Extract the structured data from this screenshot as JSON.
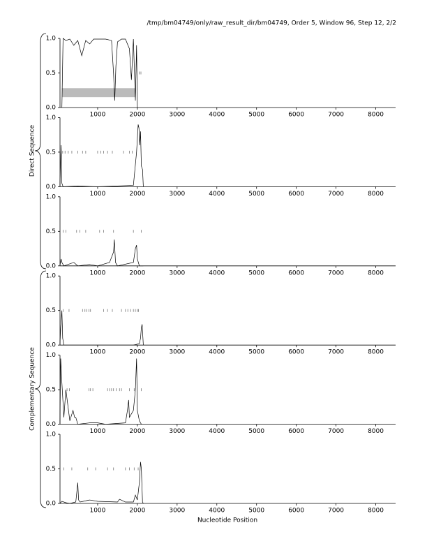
{
  "title": "/tmp/bm04749/only/raw_result_dir/bm04749, Order 5, Window 96, Step 12, 2/2",
  "xlabel": "Nucleotide Position",
  "groups": [
    "Direct Sequence",
    "Complementary Sequence"
  ],
  "chart_data": [
    {
      "type": "line",
      "color": "#000000",
      "x": [
        100,
        130,
        200,
        300,
        400,
        500,
        600,
        700,
        800,
        900,
        1000,
        1200,
        1350,
        1400,
        1430,
        1460,
        1500,
        1600,
        1700,
        1800,
        1850,
        1900,
        1950,
        1980,
        2000
      ],
      "values": [
        0,
        1,
        0.97,
        0.99,
        0.9,
        0.97,
        0.75,
        0.97,
        0.92,
        0.99,
        0.99,
        0.99,
        0.97,
        0.5,
        0.1,
        0.6,
        0.95,
        0.99,
        0.99,
        0.85,
        0.4,
        0.99,
        0.1,
        0.9,
        0
      ],
      "marks_x": [
        2050,
        2090
      ],
      "marks_y": [
        0.5,
        0.5
      ],
      "region": {
        "x": [
          100,
          1950
        ],
        "y": [
          0.15,
          0.28
        ]
      },
      "xlim": [
        0,
        8500
      ],
      "ylim": [
        0,
        1
      ],
      "xticks": [
        1000,
        2000,
        3000,
        4000,
        5000,
        6000,
        7000,
        8000
      ],
      "yticks": [
        {
          "value": 0,
          "label": "0.0"
        },
        {
          "value": 0.5,
          "label": "0.5"
        },
        {
          "value": 1,
          "label": "1.0"
        }
      ]
    },
    {
      "type": "line",
      "color": "#000000",
      "x": [
        50,
        80,
        100,
        130,
        500,
        1000,
        1500,
        1900,
        1980,
        2020,
        2040,
        2060,
        2080,
        2100,
        2130,
        2150
      ],
      "values": [
        0,
        0.6,
        0.05,
        0,
        0.01,
        0,
        0.01,
        0.02,
        0.5,
        0.9,
        0.85,
        0.6,
        0.8,
        0.3,
        0.25,
        0
      ],
      "marks_x": [
        120,
        180,
        260,
        350,
        500,
        620,
        700,
        1000,
        1080,
        1150,
        1250,
        1370,
        1650,
        1800,
        1870
      ],
      "marks_y": [
        0.5,
        0.5,
        0.5,
        0.5,
        0.5,
        0.5,
        0.5,
        0.5,
        0.5,
        0.5,
        0.5,
        0.5,
        0.5,
        0.5,
        0.5
      ],
      "xlim": [
        0,
        8500
      ],
      "ylim": [
        0,
        1
      ],
      "xticks": [
        1000,
        2000,
        3000,
        4000,
        5000,
        6000,
        7000,
        8000
      ],
      "yticks": [
        {
          "value": 0,
          "label": "0.0"
        },
        {
          "value": 0.5,
          "label": "0.5"
        },
        {
          "value": 1,
          "label": "1.0"
        }
      ]
    },
    {
      "type": "line",
      "color": "#000000",
      "x": [
        50,
        80,
        100,
        150,
        400,
        500,
        800,
        1000,
        1300,
        1400,
        1420,
        1450,
        1500,
        1900,
        1950,
        1980,
        2000,
        2050,
        2150
      ],
      "values": [
        0,
        0.1,
        0.05,
        0,
        0.05,
        0,
        0.02,
        0,
        0.05,
        0.2,
        0.38,
        0.05,
        0,
        0.05,
        0.25,
        0.3,
        0.1,
        0,
        0
      ],
      "marks_x": [
        130,
        200,
        470,
        550,
        700,
        1050,
        1150,
        1400,
        1900,
        2100
      ],
      "marks_y": [
        0.5,
        0.5,
        0.5,
        0.5,
        0.5,
        0.5,
        0.5,
        0.5,
        0.5,
        0.5
      ],
      "xlim": [
        0,
        8500
      ],
      "ylim": [
        0,
        1
      ],
      "xticks": [
        1000,
        2000,
        3000,
        4000,
        5000,
        6000,
        7000,
        8000
      ],
      "yticks": [
        {
          "value": 0,
          "label": "0.0"
        },
        {
          "value": 0.5,
          "label": "0.5"
        },
        {
          "value": 1,
          "label": "1.0"
        }
      ]
    },
    {
      "type": "line",
      "color": "#000000",
      "x": [
        50,
        70,
        100,
        120,
        150,
        1000,
        1900,
        2050,
        2080,
        2100,
        2120,
        2150
      ],
      "values": [
        0,
        0.25,
        0.5,
        0.1,
        0,
        0,
        0,
        0.02,
        0.1,
        0.25,
        0.3,
        0
      ],
      "marks_x": [
        130,
        280,
        620,
        680,
        720,
        780,
        820,
        1150,
        1250,
        1370,
        1600,
        1700,
        1760,
        1830,
        1900,
        1950,
        2000,
        2030
      ],
      "marks_y": [
        0.5,
        0.5,
        0.5,
        0.5,
        0.5,
        0.5,
        0.5,
        0.5,
        0.5,
        0.5,
        0.5,
        0.5,
        0.5,
        0.5,
        0.5,
        0.5,
        0.5,
        0.5
      ],
      "xlim": [
        0,
        8500
      ],
      "ylim": [
        0,
        1
      ],
      "xticks": [
        1000,
        2000,
        3000,
        4000,
        5000,
        6000,
        7000,
        8000
      ],
      "yticks": [
        {
          "value": 0,
          "label": "0.0"
        },
        {
          "value": 0.5,
          "label": "0.5"
        },
        {
          "value": 1,
          "label": "1.0"
        }
      ]
    },
    {
      "type": "line",
      "color": "#000000",
      "x": [
        50,
        70,
        100,
        150,
        200,
        300,
        380,
        420,
        450,
        500,
        800,
        1000,
        1200,
        1700,
        1750,
        1780,
        1800,
        1900,
        1950,
        1980,
        2000,
        2050,
        2100
      ],
      "values": [
        0,
        0.95,
        0.6,
        0.1,
        0.5,
        0.05,
        0.2,
        0.1,
        0.1,
        0,
        0.02,
        0.02,
        0,
        0.02,
        0.2,
        0.35,
        0.1,
        0.2,
        0.5,
        0.95,
        0.2,
        0.05,
        0
      ],
      "marks_x": [
        230,
        290,
        780,
        820,
        880,
        1250,
        1300,
        1350,
        1400,
        1470,
        1550,
        1600,
        1800,
        1920,
        2100
      ],
      "marks_y": [
        0.5,
        0.5,
        0.5,
        0.5,
        0.5,
        0.5,
        0.5,
        0.5,
        0.5,
        0.5,
        0.5,
        0.5,
        0.5,
        0.5,
        0.5
      ],
      "xlim": [
        0,
        8500
      ],
      "ylim": [
        0,
        1
      ],
      "xticks": [
        1000,
        2000,
        3000,
        4000,
        5000,
        6000,
        7000,
        8000
      ],
      "yticks": [
        {
          "value": 0,
          "label": "0.0"
        },
        {
          "value": 0.5,
          "label": "0.5"
        },
        {
          "value": 1,
          "label": "1.0"
        }
      ]
    },
    {
      "type": "line",
      "color": "#000000",
      "x": [
        50,
        100,
        200,
        300,
        450,
        500,
        520,
        560,
        800,
        1000,
        1500,
        1550,
        1700,
        1900,
        1950,
        2000,
        2050,
        2080,
        2100,
        2130,
        2150
      ],
      "values": [
        0,
        0.03,
        0.01,
        0,
        0.02,
        0.3,
        0.05,
        0.02,
        0.05,
        0.03,
        0.02,
        0.06,
        0.02,
        0.02,
        0.12,
        0.05,
        0.3,
        0.6,
        0.5,
        0.02,
        0
      ],
      "marks_x": [
        150,
        350,
        750,
        950,
        1250,
        1400,
        1700,
        1800,
        1920,
        2020
      ],
      "marks_y": [
        0.5,
        0.5,
        0.5,
        0.5,
        0.5,
        0.5,
        0.5,
        0.5,
        0.5,
        0.5
      ],
      "xlim": [
        0,
        8500
      ],
      "ylim": [
        0,
        1
      ],
      "xticks": [
        1000,
        2000,
        3000,
        4000,
        5000,
        6000,
        7000,
        8000
      ],
      "yticks": [
        {
          "value": 0,
          "label": "0.0"
        },
        {
          "value": 0.5,
          "label": "0.5"
        },
        {
          "value": 1,
          "label": "1.0"
        }
      ]
    }
  ]
}
